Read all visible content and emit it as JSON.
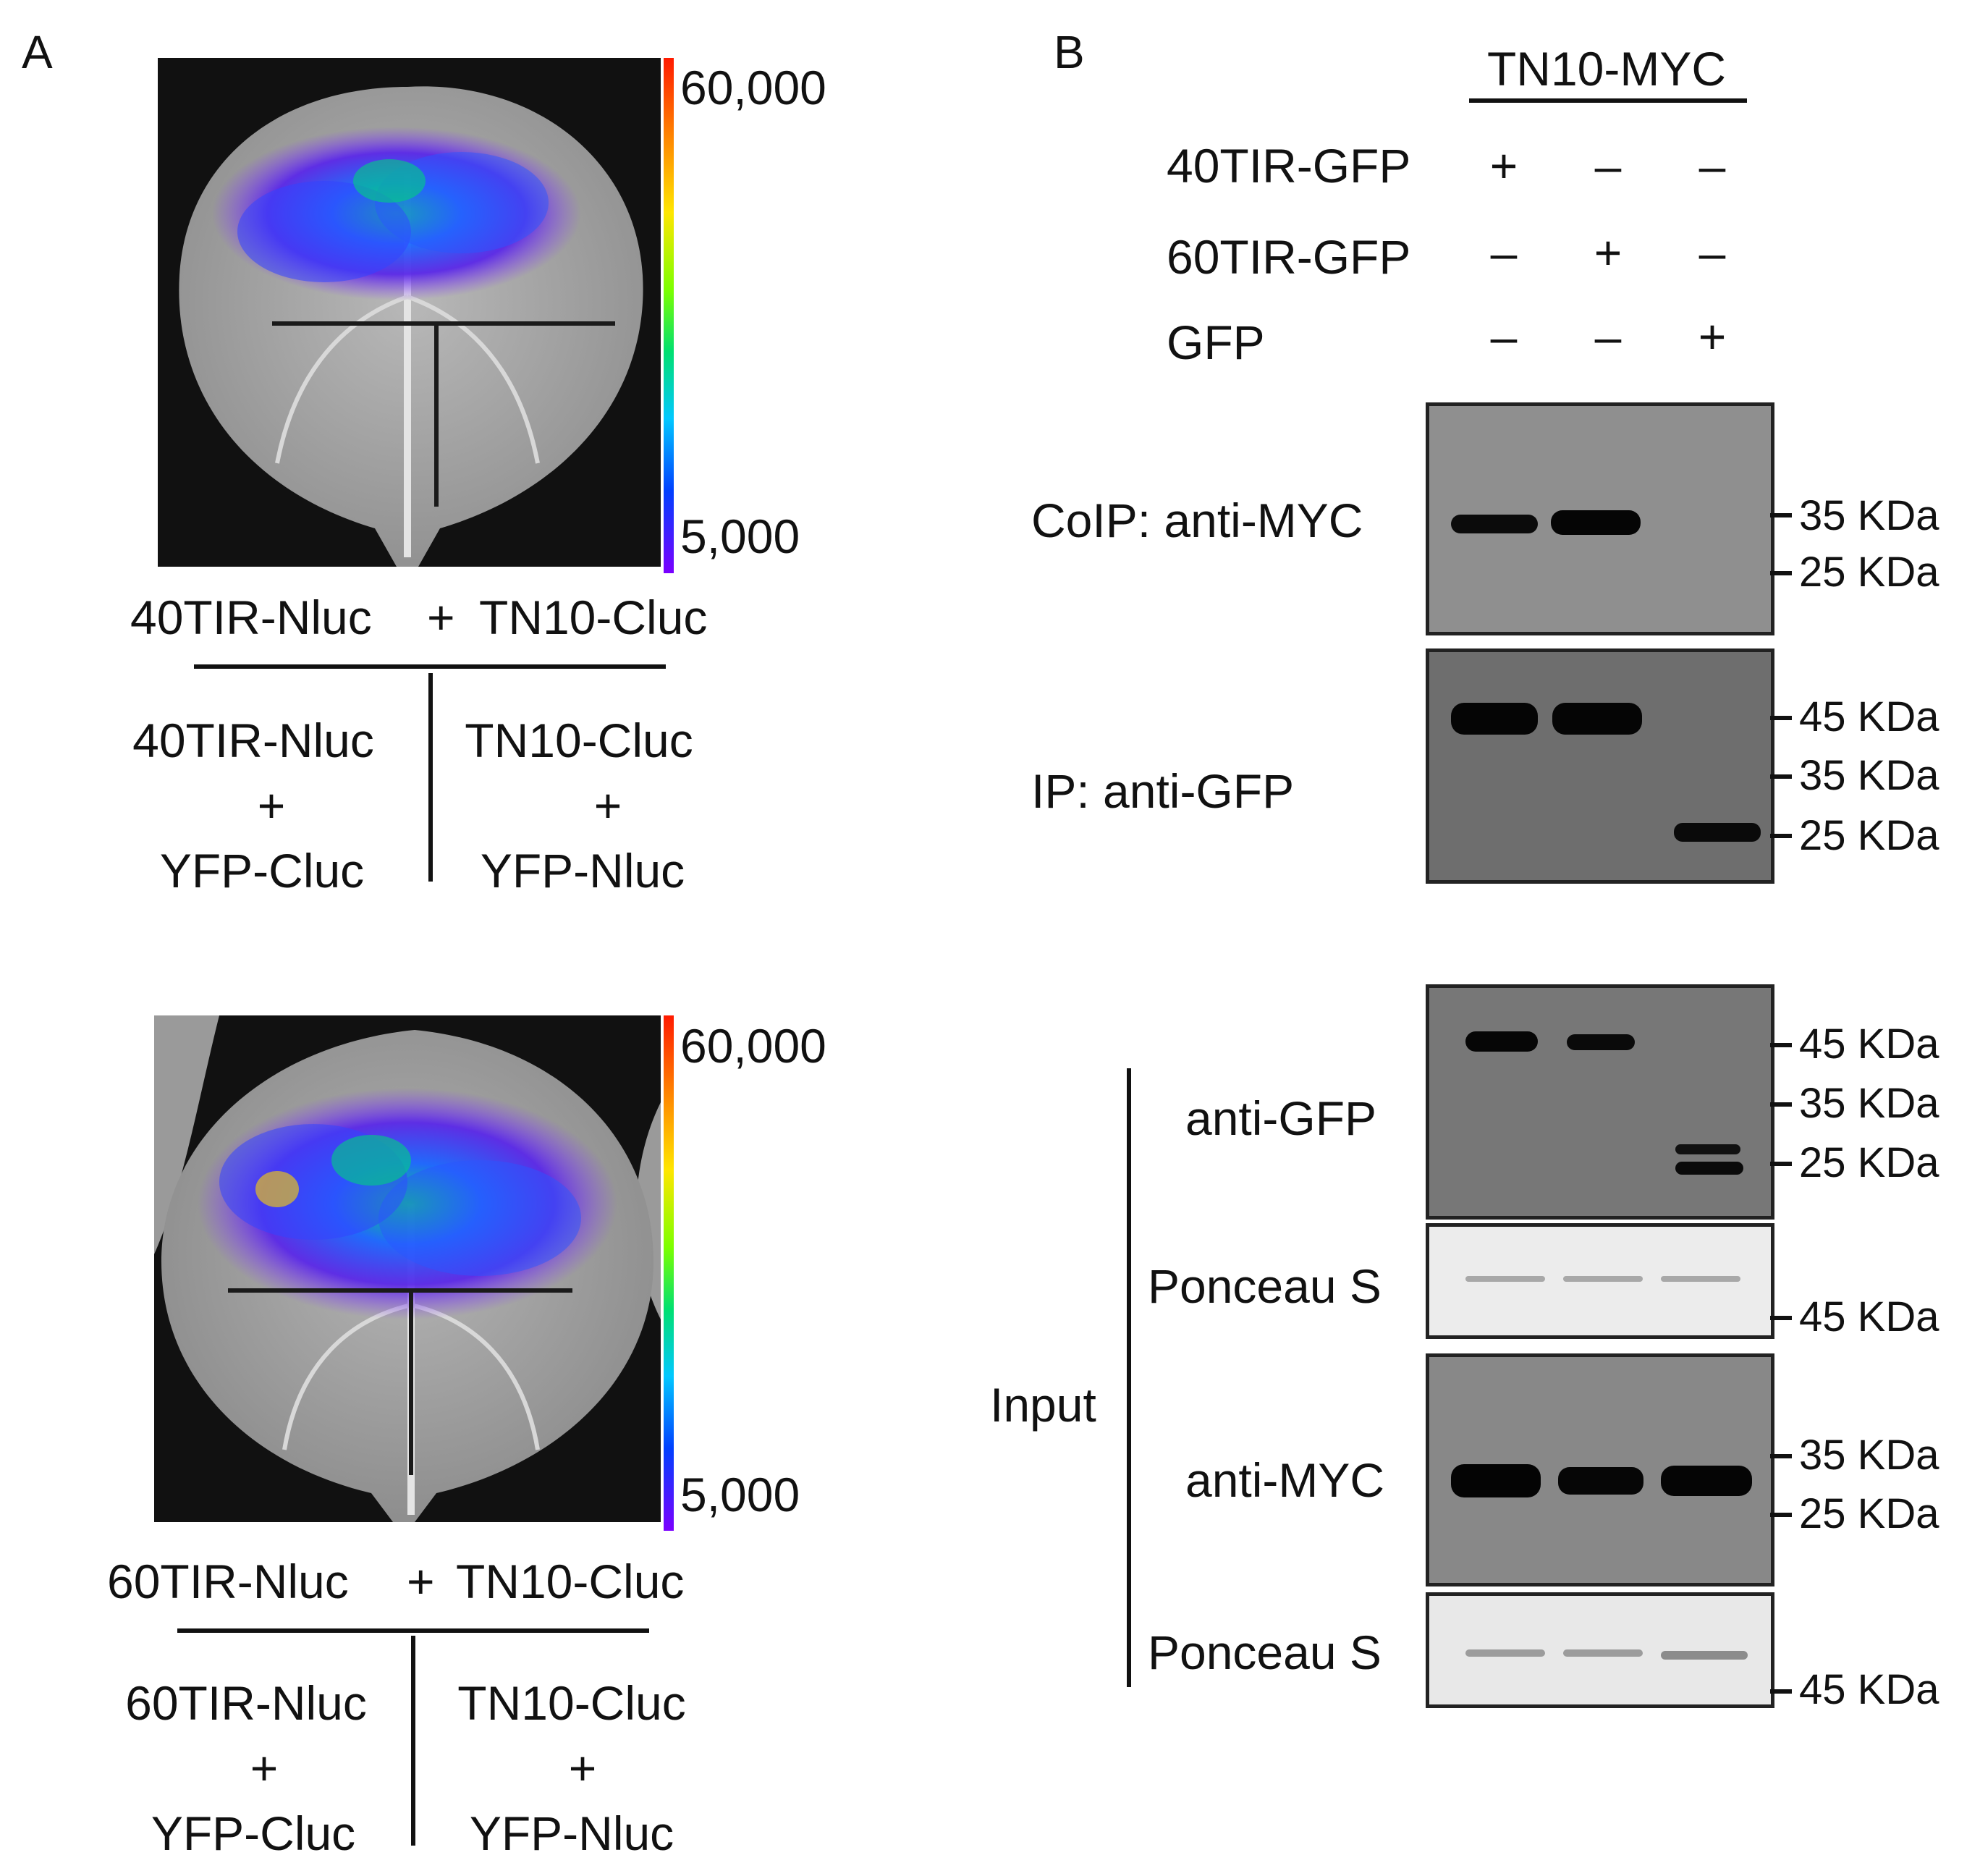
{
  "panels": {
    "a_label": "A",
    "b_label": "B"
  },
  "panel_a": {
    "scale_max": "60,000",
    "scale_min": "5,000",
    "leaf1": {
      "title_left": "40TIR-Nluc",
      "title_plus": "+",
      "title_right": "TN10-Cluc",
      "left_top": "40TIR-Nluc",
      "left_plus": "+",
      "left_bottom": "YFP-Cluc",
      "right_top": "TN10-Cluc",
      "right_plus": "+",
      "right_bottom": "YFP-Nluc"
    },
    "leaf2": {
      "title_left": "60TIR-Nluc",
      "title_plus": "+",
      "title_right": "TN10-Cluc",
      "left_top": "60TIR-Nluc",
      "left_plus": "+",
      "left_bottom": "YFP-Cluc",
      "right_top": "TN10-Cluc",
      "right_plus": "+",
      "right_bottom": "YFP-Nluc"
    }
  },
  "panel_b": {
    "header": "TN10-MYC",
    "rows": [
      {
        "label": "40TIR-GFP",
        "signs": [
          "+",
          "–",
          "–"
        ]
      },
      {
        "label": "60TIR-GFP",
        "signs": [
          "–",
          "+",
          "–"
        ]
      },
      {
        "label": "GFP",
        "signs": [
          "–",
          "–",
          "+"
        ]
      }
    ],
    "blot_labels": {
      "coip": "CoIP: anti-MYC",
      "ip": "IP: anti-GFP",
      "input": "Input",
      "in_gfp": "anti-GFP",
      "ponceau1": "Ponceau S",
      "in_myc": "anti-MYC",
      "ponceau2": "Ponceau S"
    },
    "markers": {
      "coip": [
        "35 KDa",
        "25 KDa"
      ],
      "ip": [
        "45 KDa",
        "35 KDa",
        "25 KDa"
      ],
      "in_gfp": [
        "45 KDa",
        "35 KDa",
        "25 KDa"
      ],
      "ponceau1": [
        "45 KDa"
      ],
      "in_myc": [
        "35 KDa",
        "25 KDa"
      ],
      "ponceau2": [
        "45 KDa"
      ]
    }
  }
}
